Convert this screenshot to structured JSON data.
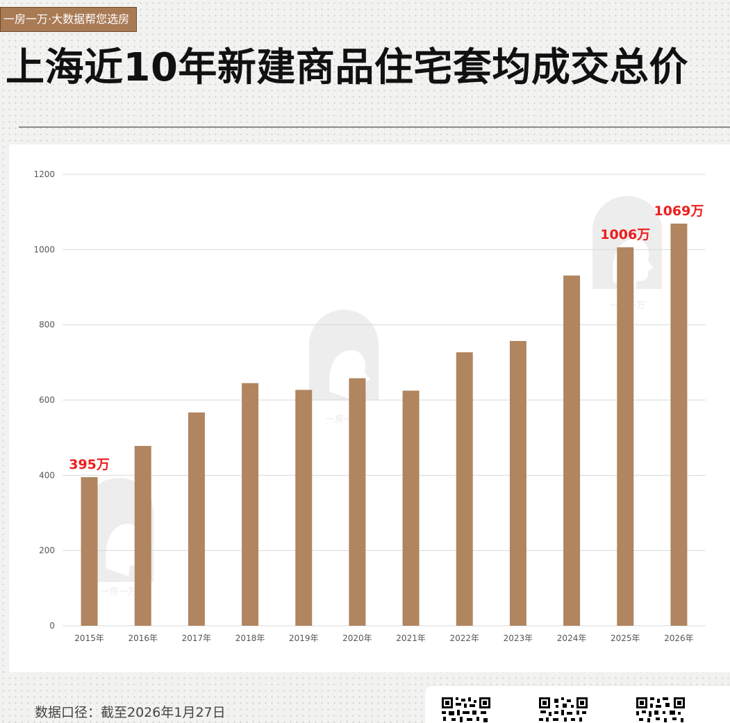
{
  "header": {
    "tag": "一房一万·大数据帮您选房",
    "title": "上海近10年新建商品住宅套均成交总价"
  },
  "footer": {
    "note": "数据口径：截至2026年1月27日"
  },
  "watermark": {
    "text": "一房一万"
  },
  "colors": {
    "bar": "#b08560",
    "highlight_label": "#ee1c1c",
    "grid": "#d9d9d9",
    "tick": "#555555",
    "tag_bg": "#a97b55"
  },
  "chart_data": {
    "type": "bar",
    "categories": [
      "2015年",
      "2016年",
      "2017年",
      "2018年",
      "2019年",
      "2020年",
      "2021年",
      "2022年",
      "2023年",
      "2024年",
      "2025年",
      "2026年"
    ],
    "values": [
      395,
      478,
      567,
      645,
      627,
      658,
      625,
      727,
      757,
      931,
      1006,
      1069
    ],
    "ylim": [
      0,
      1200
    ],
    "yticks": [
      0,
      200,
      400,
      600,
      800,
      1000,
      1200
    ],
    "grid": true,
    "legend": false,
    "annotations": [
      {
        "index": 0,
        "text": "395万"
      },
      {
        "index": 10,
        "text": "1006万"
      },
      {
        "index": 11,
        "text": "1069万"
      }
    ]
  }
}
